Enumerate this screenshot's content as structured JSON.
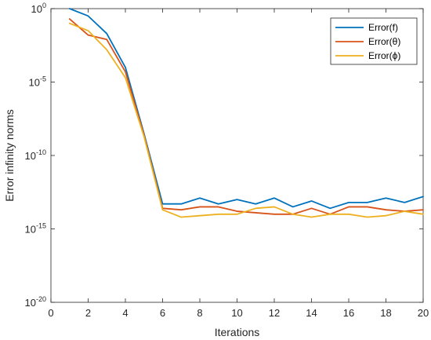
{
  "chart_data": {
    "type": "line",
    "title": "",
    "xlabel": "Iterations",
    "ylabel": "Error infinity norms",
    "xlim": [
      0,
      20
    ],
    "ylim_exponents": [
      -20,
      0
    ],
    "yscale": "log",
    "grid": false,
    "legend_position": "top-right",
    "x_ticks": [
      "0",
      "2",
      "4",
      "6",
      "8",
      "10",
      "12",
      "14",
      "16",
      "18",
      "20"
    ],
    "y_ticks": [
      {
        "base": "10",
        "exp": "0"
      },
      {
        "base": "10",
        "exp": "-5"
      },
      {
        "base": "10",
        "exp": "-10"
      },
      {
        "base": "10",
        "exp": "-15"
      },
      {
        "base": "10",
        "exp": "-20"
      }
    ],
    "x": [
      1,
      2,
      3,
      4,
      5,
      6,
      7,
      8,
      9,
      10,
      11,
      12,
      13,
      14,
      15,
      16,
      17,
      18,
      19,
      20
    ],
    "series": [
      {
        "name": "Error(f)",
        "color": "#0072BD",
        "log10_values": [
          0.0,
          -0.5,
          -1.7,
          -4.0,
          -8.5,
          -13.3,
          -13.3,
          -12.9,
          -13.3,
          -13.0,
          -13.3,
          -12.9,
          -13.5,
          -13.1,
          -13.6,
          -13.2,
          -13.2,
          -12.9,
          -13.2,
          -12.8
        ]
      },
      {
        "name": "Error(θ)",
        "color": "#D95319",
        "log10_values": [
          -0.7,
          -1.8,
          -2.1,
          -4.3,
          -8.6,
          -13.6,
          -13.7,
          -13.5,
          -13.5,
          -13.8,
          -13.9,
          -14.0,
          -14.0,
          -13.6,
          -14.0,
          -13.5,
          -13.5,
          -13.7,
          -13.8,
          -13.7
        ]
      },
      {
        "name": "Error(ϕ)",
        "color": "#EDB120",
        "log10_values": [
          -1.0,
          -1.5,
          -2.8,
          -4.7,
          -8.7,
          -13.7,
          -14.2,
          -14.1,
          -14.0,
          -14.0,
          -13.6,
          -13.5,
          -14.0,
          -14.2,
          -14.0,
          -14.0,
          -14.2,
          -14.1,
          -13.8,
          -14.0
        ]
      }
    ]
  }
}
